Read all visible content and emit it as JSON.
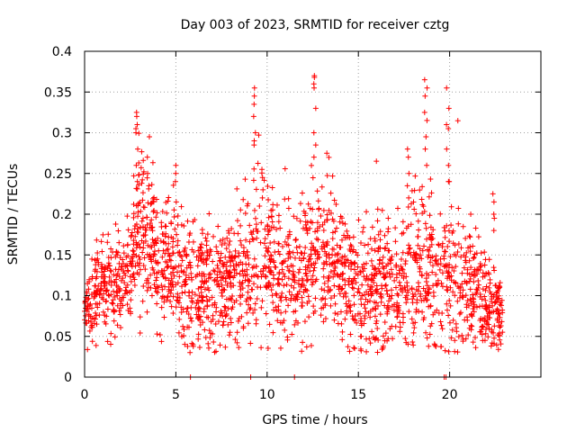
{
  "chart_data": {
    "type": "scatter",
    "title": "Day 003 of 2023, SRMTID for receiver cztg",
    "xlabel": "GPS time / hours",
    "ylabel": "SRMTID / TECUs",
    "xlim": [
      0,
      25
    ],
    "ylim": [
      0,
      0.4
    ],
    "grid": true,
    "marker": "+",
    "marker_color": "#ff0000",
    "x_ticks": [
      {
        "value": 0,
        "label": "0"
      },
      {
        "value": 5,
        "label": "5"
      },
      {
        "value": 10,
        "label": "10"
      },
      {
        "value": 15,
        "label": "15"
      },
      {
        "value": 20,
        "label": "20"
      }
    ],
    "y_ticks": [
      {
        "value": 0,
        "label": "0"
      },
      {
        "value": 0.05,
        "label": "0.05"
      },
      {
        "value": 0.1,
        "label": "0.1"
      },
      {
        "value": 0.15,
        "label": "0.15"
      },
      {
        "value": 0.2,
        "label": "0.2"
      },
      {
        "value": 0.25,
        "label": "0.25"
      },
      {
        "value": 0.3,
        "label": "0.3"
      },
      {
        "value": 0.35,
        "label": "0.35"
      },
      {
        "value": 0.4,
        "label": "0.4"
      }
    ],
    "series_envelope": {
      "name": "SRMTID",
      "x_range": [
        0,
        22.9
      ],
      "profile": [
        {
          "x": 0.0,
          "center": 0.08,
          "spread": 0.02
        },
        {
          "x": 0.5,
          "center": 0.095,
          "spread": 0.03
        },
        {
          "x": 1.0,
          "center": 0.115,
          "spread": 0.035
        },
        {
          "x": 1.5,
          "center": 0.11,
          "spread": 0.035
        },
        {
          "x": 2.0,
          "center": 0.115,
          "spread": 0.035
        },
        {
          "x": 2.5,
          "center": 0.14,
          "spread": 0.035
        },
        {
          "x": 3.0,
          "center": 0.19,
          "spread": 0.06
        },
        {
          "x": 3.5,
          "center": 0.17,
          "spread": 0.055
        },
        {
          "x": 4.0,
          "center": 0.15,
          "spread": 0.05
        },
        {
          "x": 5.0,
          "center": 0.13,
          "spread": 0.05
        },
        {
          "x": 6.0,
          "center": 0.115,
          "spread": 0.045
        },
        {
          "x": 7.0,
          "center": 0.11,
          "spread": 0.045
        },
        {
          "x": 8.0,
          "center": 0.115,
          "spread": 0.045
        },
        {
          "x": 9.0,
          "center": 0.13,
          "spread": 0.05
        },
        {
          "x": 9.5,
          "center": 0.17,
          "spread": 0.07
        },
        {
          "x": 10.0,
          "center": 0.14,
          "spread": 0.05
        },
        {
          "x": 11.0,
          "center": 0.12,
          "spread": 0.05
        },
        {
          "x": 12.0,
          "center": 0.135,
          "spread": 0.05
        },
        {
          "x": 12.7,
          "center": 0.15,
          "spread": 0.06
        },
        {
          "x": 13.5,
          "center": 0.135,
          "spread": 0.05
        },
        {
          "x": 14.5,
          "center": 0.12,
          "spread": 0.045
        },
        {
          "x": 15.5,
          "center": 0.11,
          "spread": 0.045
        },
        {
          "x": 16.5,
          "center": 0.105,
          "spread": 0.045
        },
        {
          "x": 17.5,
          "center": 0.12,
          "spread": 0.05
        },
        {
          "x": 18.5,
          "center": 0.145,
          "spread": 0.06
        },
        {
          "x": 19.5,
          "center": 0.11,
          "spread": 0.05
        },
        {
          "x": 20.0,
          "center": 0.13,
          "spread": 0.06
        },
        {
          "x": 21.0,
          "center": 0.11,
          "spread": 0.045
        },
        {
          "x": 22.0,
          "center": 0.09,
          "spread": 0.035
        },
        {
          "x": 22.9,
          "center": 0.08,
          "spread": 0.025
        }
      ],
      "approx_point_count": 2200
    },
    "spikes": [
      {
        "x": 2.85,
        "values": [
          0.3,
          0.305,
          0.31,
          0.32,
          0.325,
          0.28,
          0.26,
          0.24
        ]
      },
      {
        "x": 3.5,
        "values": [
          0.295,
          0.27,
          0.25,
          0.235
        ]
      },
      {
        "x": 5.0,
        "values": [
          0.26,
          0.25,
          0.24,
          0.215
        ]
      },
      {
        "x": 9.3,
        "values": [
          0.355,
          0.345,
          0.335,
          0.32,
          0.3,
          0.29,
          0.285
        ]
      },
      {
        "x": 9.7,
        "values": [
          0.255,
          0.245,
          0.23,
          0.22
        ]
      },
      {
        "x": 12.6,
        "values": [
          0.37,
          0.368,
          0.36,
          0.355,
          0.33,
          0.3,
          0.285,
          0.27
        ]
      },
      {
        "x": 16.0,
        "values": [
          0.265
        ]
      },
      {
        "x": 17.7,
        "values": [
          0.28,
          0.27,
          0.25,
          0.235,
          0.22
        ]
      },
      {
        "x": 18.7,
        "values": [
          0.365,
          0.355,
          0.345,
          0.325,
          0.315,
          0.295,
          0.28,
          0.26
        ]
      },
      {
        "x": 19.9,
        "values": [
          0.355,
          0.33,
          0.31,
          0.305,
          0.28,
          0.26,
          0.24
        ]
      },
      {
        "x": 22.4,
        "values": [
          0.225,
          0.215,
          0.2,
          0.195,
          0.18
        ]
      }
    ],
    "zero_points": [
      5.8,
      9.1,
      11.5,
      19.7,
      19.8
    ]
  }
}
